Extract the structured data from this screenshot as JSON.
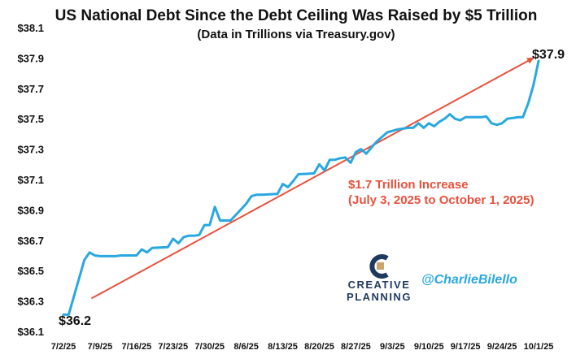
{
  "chart_data": {
    "type": "line",
    "title": "US National Debt Since the Debt Ceiling Was Raised by $5 Trillion",
    "subtitle": "(Data in Trillions via Treasury.gov)",
    "xlabel": "",
    "ylabel": "",
    "ylim": [
      36.1,
      38.1
    ],
    "yticks": [
      36.1,
      36.3,
      36.5,
      36.7,
      36.9,
      37.1,
      37.3,
      37.5,
      37.7,
      37.9,
      38.1
    ],
    "ytick_labels": [
      "$36.1",
      "$36.3",
      "$36.5",
      "$36.7",
      "$36.9",
      "$37.1",
      "$37.3",
      "$37.5",
      "$37.7",
      "$37.9",
      "$38.1"
    ],
    "x_range_days": [
      0,
      91
    ],
    "xtick_days": [
      0,
      7,
      14,
      21,
      28,
      35,
      42,
      49,
      56,
      63,
      70,
      77,
      84,
      91
    ],
    "xtick_labels": [
      "7/2/25",
      "7/9/25",
      "7/16/25",
      "7/23/25",
      "7/30/25",
      "8/6/25",
      "8/13/25",
      "8/20/25",
      "8/27/25",
      "9/3/25",
      "9/10/25",
      "9/17/25",
      "9/24/25",
      "10/1/25"
    ],
    "series": [
      {
        "name": "US National Debt",
        "color": "#29a8e0",
        "x": [
          0,
          1,
          4,
          5,
          6,
          7,
          8,
          10,
          11,
          14,
          15,
          16,
          17,
          20,
          21,
          22,
          23,
          24,
          25,
          26,
          27,
          28,
          29,
          30,
          31,
          32,
          35,
          36,
          37,
          38,
          41,
          42,
          43,
          44,
          45,
          48,
          49,
          50,
          51,
          52,
          53,
          54,
          55,
          56,
          57,
          58,
          59,
          60,
          61,
          62,
          63,
          64,
          66,
          67,
          68,
          69,
          70,
          71,
          72,
          73,
          74,
          75,
          76,
          77,
          78,
          79,
          80,
          81,
          82,
          83,
          84,
          85,
          86,
          87,
          88,
          89,
          90,
          91
        ],
        "values": [
          36.21,
          36.21,
          36.57,
          36.62,
          36.6,
          36.595,
          36.595,
          36.595,
          36.6,
          36.6,
          36.64,
          36.62,
          36.65,
          36.655,
          36.71,
          36.68,
          36.72,
          36.73,
          36.73,
          36.735,
          36.8,
          36.8,
          36.92,
          36.83,
          36.83,
          36.83,
          36.94,
          36.99,
          37.0,
          37.0,
          37.005,
          37.07,
          37.05,
          37.09,
          37.135,
          37.14,
          37.2,
          37.16,
          37.23,
          37.23,
          37.24,
          37.245,
          37.21,
          37.28,
          37.3,
          37.27,
          37.31,
          37.35,
          37.38,
          37.41,
          37.42,
          37.43,
          37.44,
          37.44,
          37.47,
          37.44,
          37.47,
          37.45,
          37.48,
          37.5,
          37.53,
          37.5,
          37.49,
          37.51,
          37.51,
          37.51,
          37.51,
          37.515,
          37.47,
          37.46,
          37.47,
          37.5,
          37.505,
          37.51,
          37.51,
          37.6,
          37.72,
          37.88
        ]
      }
    ],
    "trend_arrow": {
      "from": [
        1,
        36.21
      ],
      "to": [
        91,
        37.88
      ],
      "color": "#e8513c"
    },
    "start_label": "$36.2",
    "end_label": "$37.9",
    "annotation": {
      "lines": [
        "$1.7 Trillion Increase",
        "(July 3, 2025 to October 1, 2025)"
      ],
      "color": "#e8513c"
    },
    "branding": {
      "brand_line1": "CREATIVE",
      "brand_line2": "PLANNING",
      "handle": "@CharlieBilello",
      "brand_color": "#1f3a5f",
      "handle_color": "#29a8e0"
    }
  }
}
